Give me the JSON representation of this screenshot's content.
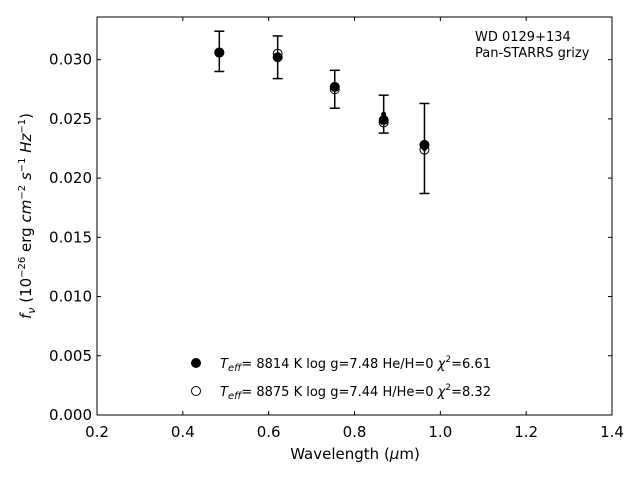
{
  "chart_data": {
    "type": "scatter",
    "xlabel": "Wavelength (μm)",
    "ylabel": "f_ν (10^-26 erg cm^-2 s^-1 Hz^-1)",
    "xlim": [
      0.2,
      1.4
    ],
    "ylim": [
      0.0,
      0.0336
    ],
    "x_ticks": [
      0.2,
      0.4,
      0.6,
      0.8,
      1.0,
      1.2,
      1.4
    ],
    "x_tick_labels": [
      "0.2",
      "0.4",
      "0.6",
      "0.8",
      "1.0",
      "1.2",
      "1.4"
    ],
    "y_ticks": [
      0.0,
      0.005,
      0.01,
      0.015,
      0.02,
      0.025,
      0.03
    ],
    "y_tick_labels": [
      "0.000",
      "0.005",
      "0.010",
      "0.015",
      "0.020",
      "0.025",
      "0.030"
    ],
    "grid": false,
    "annotation": [
      "WD 0129+134",
      "Pan-STARRS grizy"
    ],
    "observed": {
      "x": [
        0.485,
        0.621,
        0.754,
        0.868,
        0.963
      ],
      "y": [
        0.0307,
        0.0302,
        0.0275,
        0.0254,
        0.0225
      ],
      "yerr": [
        0.0017,
        0.0018,
        0.0016,
        0.0016,
        0.0038
      ]
    },
    "series": [
      {
        "marker": "filled-circle",
        "x": [
          0.485,
          0.621,
          0.754,
          0.868,
          0.963
        ],
        "y": [
          0.0306,
          0.0302,
          0.0277,
          0.0249,
          0.0228
        ],
        "legend": {
          "teff": "8814",
          "logg": "7.48",
          "comp": "He/H=0",
          "chi2": "6.61"
        }
      },
      {
        "marker": "open-circle",
        "x": [
          0.485,
          0.621,
          0.754,
          0.868,
          0.963
        ],
        "y": [
          0.0306,
          0.0305,
          0.0275,
          0.0247,
          0.0224
        ],
        "legend": {
          "teff": "8875",
          "logg": "7.44",
          "comp": "H/He=0",
          "chi2": "8.32"
        }
      }
    ],
    "legend_placement": "lower-center"
  }
}
